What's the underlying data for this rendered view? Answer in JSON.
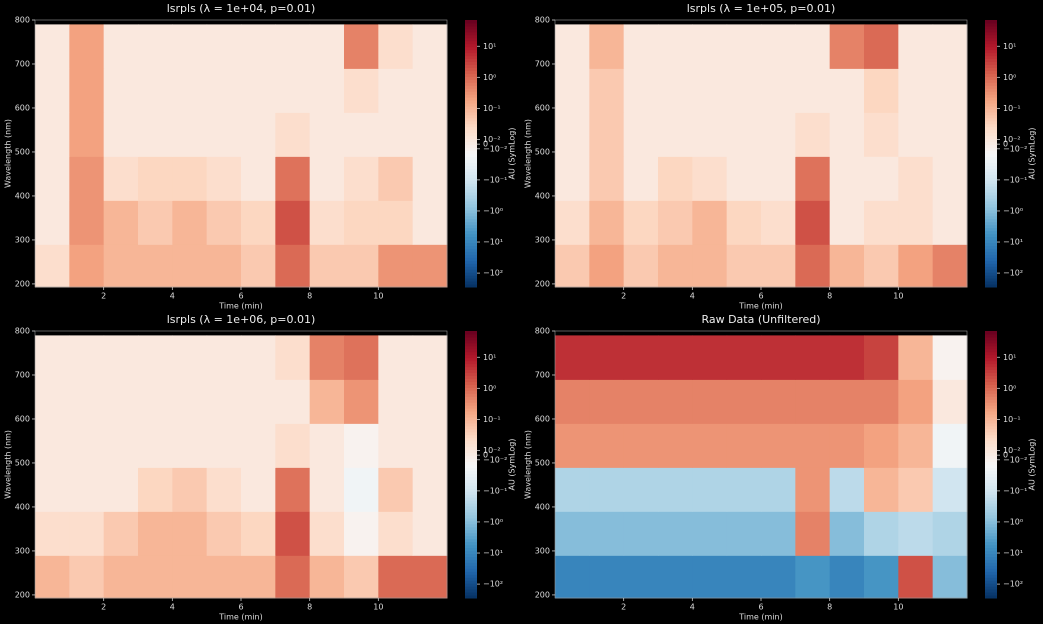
{
  "chart_data": [
    {
      "type": "heatmap",
      "title": "lsrpls (λ = 1e+04, p=0.01)",
      "x_label": "Time (min)",
      "y_label": "Wavelength (nm)",
      "colorbar_label": "AU (SymLog)",
      "colormap": "RdBu_r",
      "scale": "symlog",
      "linthresh": 0.01,
      "clim": [
        -280,
        70
      ],
      "xlim": [
        0,
        12
      ],
      "ylim": [
        193,
        800
      ],
      "xticks": [
        2,
        4,
        6,
        8,
        10
      ],
      "yticks": [
        200,
        300,
        400,
        500,
        600,
        700,
        800
      ],
      "cticks": [
        {
          "value": 10,
          "label": "10¹"
        },
        {
          "value": 1,
          "label": "10⁰"
        },
        {
          "value": 0.1,
          "label": "10⁻¹"
        },
        {
          "value": 0.01,
          "label": "10⁻²"
        },
        0,
        {
          "value": -0.01,
          "label": "−10⁻²"
        },
        {
          "value": -0.1,
          "label": "−10⁻¹"
        },
        {
          "value": -1,
          "label": "−10⁰"
        },
        {
          "value": -10,
          "label": "−10¹"
        },
        {
          "value": -100,
          "label": "−10²"
        }
      ],
      "x": [
        0.5,
        1.5,
        2.5,
        3.5,
        4.5,
        5.5,
        6.5,
        7.5,
        8.5,
        9.5,
        10.5,
        11.5
      ],
      "y": [
        240,
        340,
        440,
        540,
        640,
        740
      ],
      "z": [
        [
          0.02,
          0.2,
          0.1,
          0.1,
          0.1,
          0.1,
          0.05,
          1,
          0.05,
          0.05,
          0.3,
          0.3
        ],
        [
          0.01,
          0.3,
          0.1,
          0.05,
          0.1,
          0.05,
          0.03,
          2,
          0.02,
          0.03,
          0.03,
          0.01
        ],
        [
          0.01,
          0.3,
          0.02,
          0.03,
          0.03,
          0.02,
          0.01,
          0.8,
          0.01,
          0.02,
          0.05,
          0.01
        ],
        [
          0.01,
          0.2,
          0.01,
          0.01,
          0.01,
          0.01,
          0.01,
          0.02,
          0.01,
          0.01,
          0.01,
          0.01
        ],
        [
          0.01,
          0.2,
          0.01,
          0.01,
          0.01,
          0.01,
          0.01,
          0.01,
          0.01,
          0.02,
          0.01,
          0.01
        ],
        [
          0.01,
          0.2,
          0.01,
          0.01,
          0.01,
          0.01,
          0.01,
          0.01,
          0.01,
          0.5,
          0.02,
          0.01
        ]
      ]
    },
    {
      "type": "heatmap",
      "title": "lsrpls (λ = 1e+05, p=0.01)",
      "x_label": "Time (min)",
      "y_label": "Wavelength (nm)",
      "colorbar_label": "AU (SymLog)",
      "colormap": "RdBu_r",
      "scale": "symlog",
      "linthresh": 0.01,
      "clim": [
        -280,
        70
      ],
      "xlim": [
        0,
        12
      ],
      "ylim": [
        193,
        800
      ],
      "xticks": [
        2,
        4,
        6,
        8,
        10
      ],
      "yticks": [
        200,
        300,
        400,
        500,
        600,
        700,
        800
      ],
      "cticks": [
        {
          "value": 10,
          "label": "10¹"
        },
        {
          "value": 1,
          "label": "10⁰"
        },
        {
          "value": 0.1,
          "label": "10⁻¹"
        },
        {
          "value": 0.01,
          "label": "10⁻²"
        },
        0,
        {
          "value": -0.01,
          "label": "−10⁻²"
        },
        {
          "value": -0.1,
          "label": "−10⁻¹"
        },
        {
          "value": -1,
          "label": "−10⁰"
        },
        {
          "value": -10,
          "label": "−10¹"
        },
        {
          "value": -100,
          "label": "−10²"
        }
      ],
      "x": [
        0.5,
        1.5,
        2.5,
        3.5,
        4.5,
        5.5,
        6.5,
        7.5,
        8.5,
        9.5,
        10.5,
        11.5
      ],
      "y": [
        240,
        340,
        440,
        540,
        640,
        740
      ],
      "z": [
        [
          0.05,
          0.2,
          0.05,
          0.1,
          0.1,
          0.05,
          0.05,
          1,
          0.1,
          0.05,
          0.2,
          0.5
        ],
        [
          0.02,
          0.1,
          0.03,
          0.05,
          0.1,
          0.03,
          0.02,
          2,
          0.01,
          0.02,
          0.02,
          0.01
        ],
        [
          0.01,
          0.05,
          0.01,
          0.03,
          0.02,
          0.01,
          0.01,
          0.8,
          0.01,
          0.01,
          0.02,
          0.01
        ],
        [
          0.01,
          0.05,
          0.01,
          0.01,
          0.01,
          0.01,
          0.01,
          0.02,
          0.01,
          0.02,
          0.01,
          0.01
        ],
        [
          0.01,
          0.05,
          0.01,
          0.01,
          0.01,
          0.01,
          0.01,
          0.01,
          0.01,
          0.03,
          0.01,
          0.01
        ],
        [
          0.01,
          0.1,
          0.01,
          0.01,
          0.01,
          0.01,
          0.01,
          0.01,
          0.5,
          1,
          0.01,
          0.01
        ]
      ]
    },
    {
      "type": "heatmap",
      "title": "lsrpls (λ = 1e+06, p=0.01)",
      "x_label": "Time (min)",
      "y_label": "Wavelength (nm)",
      "colorbar_label": "AU (SymLog)",
      "colormap": "RdBu_r",
      "scale": "symlog",
      "linthresh": 0.01,
      "clim": [
        -280,
        70
      ],
      "xlim": [
        0,
        12
      ],
      "ylim": [
        193,
        800
      ],
      "xticks": [
        2,
        4,
        6,
        8,
        10
      ],
      "yticks": [
        200,
        300,
        400,
        500,
        600,
        700,
        800
      ],
      "cticks": [
        {
          "value": 10,
          "label": "10¹"
        },
        {
          "value": 1,
          "label": "10⁰"
        },
        {
          "value": 0.1,
          "label": "10⁻¹"
        },
        {
          "value": 0.01,
          "label": "10⁻²"
        },
        0,
        {
          "value": -0.01,
          "label": "−10⁻²"
        },
        {
          "value": -0.1,
          "label": "−10⁻¹"
        },
        {
          "value": -1,
          "label": "−10⁰"
        },
        {
          "value": -10,
          "label": "−10¹"
        },
        {
          "value": -100,
          "label": "−10²"
        }
      ],
      "x": [
        0.5,
        1.5,
        2.5,
        3.5,
        4.5,
        5.5,
        6.5,
        7.5,
        8.5,
        9.5,
        10.5,
        11.5
      ],
      "y": [
        240,
        340,
        440,
        540,
        640,
        740
      ],
      "z": [
        [
          0.1,
          0.05,
          0.1,
          0.1,
          0.1,
          0.1,
          0.1,
          1,
          0.1,
          0.05,
          1,
          1
        ],
        [
          0.02,
          0.02,
          0.05,
          0.1,
          0.1,
          0.05,
          0.03,
          2,
          0.02,
          -0.01,
          0.02,
          0.01
        ],
        [
          0.01,
          0.01,
          0.01,
          0.03,
          0.05,
          0.02,
          0.01,
          0.8,
          0.01,
          -0.02,
          0.05,
          0.01
        ],
        [
          0.01,
          0.01,
          0.01,
          0.01,
          0.01,
          0.01,
          0.01,
          0.02,
          0.01,
          -0.01,
          0.01,
          0.01
        ],
        [
          0.01,
          0.01,
          0.01,
          0.01,
          0.01,
          0.01,
          0.01,
          0.01,
          0.1,
          0.3,
          0.01,
          0.01
        ],
        [
          0.01,
          0.01,
          0.01,
          0.01,
          0.01,
          0.01,
          0.01,
          0.02,
          0.5,
          0.8,
          0.01,
          0.01
        ]
      ]
    },
    {
      "type": "heatmap",
      "title": "Raw Data (Unfiltered)",
      "x_label": "Time (min)",
      "y_label": "Wavelength (nm)",
      "colorbar_label": "AU (SymLog)",
      "colormap": "RdBu_r",
      "scale": "symlog",
      "linthresh": 0.01,
      "clim": [
        -280,
        70
      ],
      "xlim": [
        0,
        12
      ],
      "ylim": [
        193,
        800
      ],
      "xticks": [
        2,
        4,
        6,
        8,
        10
      ],
      "yticks": [
        200,
        300,
        400,
        500,
        600,
        700,
        800
      ],
      "cticks": [
        {
          "value": 10,
          "label": "10¹"
        },
        {
          "value": 1,
          "label": "10⁰"
        },
        {
          "value": 0.1,
          "label": "10⁻¹"
        },
        {
          "value": 0.01,
          "label": "10⁻²"
        },
        0,
        {
          "value": -0.01,
          "label": "−10⁻²"
        },
        {
          "value": -0.1,
          "label": "−10⁻¹"
        },
        {
          "value": -1,
          "label": "−10⁰"
        },
        {
          "value": -10,
          "label": "−10¹"
        },
        {
          "value": -100,
          "label": "−10²"
        }
      ],
      "x": [
        0.5,
        1.5,
        2.5,
        3.5,
        4.5,
        5.5,
        6.5,
        7.5,
        8.5,
        9.5,
        10.5,
        11.5
      ],
      "y": [
        240,
        340,
        440,
        540,
        640,
        740
      ],
      "z": [
        [
          -10,
          -10,
          -10,
          -10,
          -10,
          -10,
          -10,
          -5,
          -10,
          -5,
          2,
          -1
        ],
        [
          -1,
          -1,
          -1,
          -1,
          -1,
          -1,
          -1,
          0.5,
          -1,
          -0.3,
          -0.2,
          -0.3
        ],
        [
          -0.3,
          -0.3,
          -0.3,
          -0.3,
          -0.3,
          -0.3,
          -0.3,
          0.3,
          -0.2,
          0.1,
          0.05,
          -0.1
        ],
        [
          0.3,
          0.3,
          0.3,
          0.3,
          0.3,
          0.3,
          0.3,
          0.3,
          0.3,
          0.2,
          0.1,
          -0.02
        ],
        [
          0.5,
          0.5,
          0.5,
          0.5,
          0.5,
          0.5,
          0.5,
          0.5,
          0.5,
          0.5,
          0.2,
          0.01
        ],
        [
          5,
          5,
          5,
          5,
          5,
          5,
          5,
          5,
          5,
          3,
          0.1,
          -0.01
        ]
      ]
    }
  ]
}
